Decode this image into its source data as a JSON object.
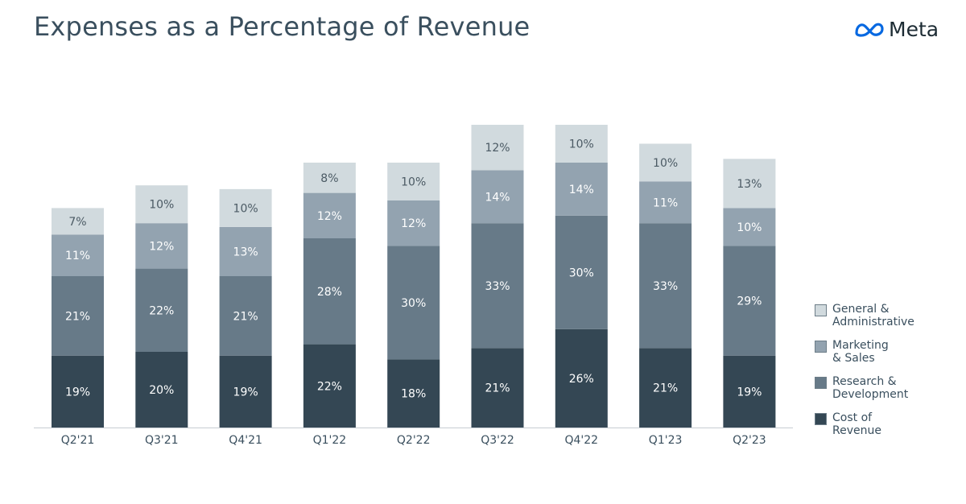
{
  "header": {
    "title": "Expenses as a Percentage of Revenue",
    "logo_text": "Meta",
    "logo_icon": "meta-infinity-icon"
  },
  "colors": {
    "general_admin": "#d1dade",
    "marketing_sales": "#93a3b0",
    "research_dev": "#677a88",
    "cost_of_revenue": "#344754",
    "axis": "#c7cdd2",
    "text_dark": "#3a4f5e",
    "label_light": "#ffffff",
    "label_dark": "#4b5a64",
    "logo_blue": "#0668e1"
  },
  "chart_data": {
    "type": "bar",
    "stacked": true,
    "title": "Expenses as a Percentage of Revenue",
    "xlabel": "",
    "ylabel": "",
    "unit": "%",
    "ylim": [
      0,
      85
    ],
    "grid": false,
    "legend_position": "right",
    "categories": [
      "Q2'21",
      "Q3'21",
      "Q4'21",
      "Q1'22",
      "Q2'22",
      "Q3'22",
      "Q4'22",
      "Q1'23",
      "Q2'23"
    ],
    "series": [
      {
        "name": "Cost of Revenue",
        "key": "cost_of_revenue",
        "values": [
          19,
          20,
          19,
          22,
          18,
          21,
          26,
          21,
          19
        ]
      },
      {
        "name": "Research & Development",
        "key": "research_dev",
        "values": [
          21,
          22,
          21,
          28,
          30,
          33,
          30,
          33,
          29
        ]
      },
      {
        "name": "Marketing & Sales",
        "key": "marketing_sales",
        "values": [
          11,
          12,
          13,
          12,
          12,
          14,
          14,
          11,
          10
        ]
      },
      {
        "name": "General & Administrative",
        "key": "general_admin",
        "values": [
          7,
          10,
          10,
          8,
          10,
          12,
          10,
          10,
          13
        ]
      }
    ]
  },
  "legend": [
    {
      "label": "General &\nAdministrative",
      "key": "general_admin"
    },
    {
      "label": "Marketing\n& Sales",
      "key": "marketing_sales"
    },
    {
      "label": "Research &\nDevelopment",
      "key": "research_dev"
    },
    {
      "label": "Cost of\nRevenue",
      "key": "cost_of_revenue"
    }
  ]
}
